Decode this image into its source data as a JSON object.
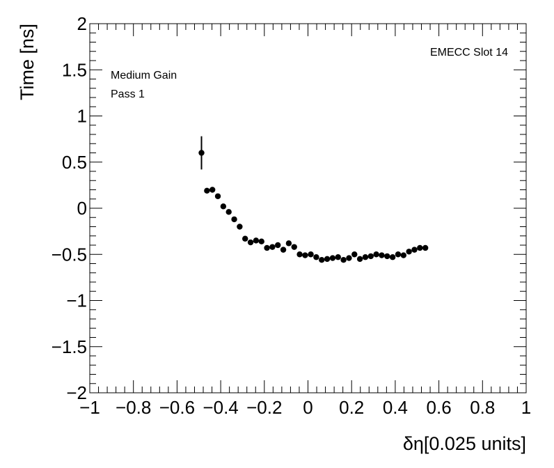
{
  "chart_data": {
    "type": "scatter",
    "xlabel": "δη[0.025 units]",
    "ylabel": "Time [ns]",
    "xlim": [
      -1,
      1
    ],
    "ylim": [
      -2,
      2
    ],
    "xticks": [
      "−1",
      "−0.8",
      "−0.6",
      "−0.4",
      "−0.2",
      "0",
      "0.2",
      "0.4",
      "0.6",
      "0.8",
      "1"
    ],
    "xtick_values": [
      -1,
      -0.8,
      -0.6,
      -0.4,
      -0.2,
      0,
      0.2,
      0.4,
      0.6,
      0.8,
      1
    ],
    "yticks": [
      "−2",
      "−1.5",
      "−1",
      "−0.5",
      "0",
      "0.5",
      "1",
      "1.5",
      "2"
    ],
    "ytick_values": [
      -2,
      -1.5,
      -1,
      -0.5,
      0,
      0.5,
      1,
      1.5,
      2
    ],
    "grid": false,
    "annotations": {
      "top_right": "EMECC Slot 14",
      "top_left_line1": "Medium Gain",
      "top_left_line2": "Pass 1"
    },
    "series": [
      {
        "marker": "circle",
        "color": "#000000",
        "x": [
          -0.488,
          -0.463,
          -0.438,
          -0.413,
          -0.388,
          -0.363,
          -0.338,
          -0.313,
          -0.288,
          -0.263,
          -0.238,
          -0.213,
          -0.188,
          -0.163,
          -0.138,
          -0.113,
          -0.088,
          -0.063,
          -0.038,
          -0.013,
          0.013,
          0.038,
          0.063,
          0.088,
          0.113,
          0.138,
          0.163,
          0.188,
          0.213,
          0.238,
          0.263,
          0.288,
          0.313,
          0.338,
          0.363,
          0.388,
          0.413,
          0.438,
          0.463,
          0.488,
          0.513,
          0.538
        ],
        "y": [
          0.6,
          0.19,
          0.2,
          0.13,
          0.02,
          -0.04,
          -0.12,
          -0.2,
          -0.33,
          -0.37,
          -0.35,
          -0.36,
          -0.43,
          -0.42,
          -0.4,
          -0.45,
          -0.38,
          -0.42,
          -0.5,
          -0.51,
          -0.5,
          -0.53,
          -0.56,
          -0.55,
          -0.54,
          -0.53,
          -0.56,
          -0.54,
          -0.5,
          -0.55,
          -0.53,
          -0.52,
          -0.5,
          -0.51,
          -0.52,
          -0.53,
          -0.5,
          -0.51,
          -0.47,
          -0.45,
          -0.43,
          -0.43
        ],
        "yerr": [
          0.18,
          0.02,
          0.02,
          0.02,
          0.02,
          0.02,
          0.02,
          0.02,
          0.02,
          0.02,
          0.02,
          0.02,
          0.02,
          0.02,
          0.02,
          0.02,
          0.02,
          0.02,
          0.02,
          0.02,
          0.02,
          0.02,
          0.02,
          0.02,
          0.02,
          0.02,
          0.02,
          0.02,
          0.02,
          0.02,
          0.02,
          0.02,
          0.02,
          0.02,
          0.02,
          0.02,
          0.02,
          0.02,
          0.02,
          0.02,
          0.02,
          0.02
        ]
      }
    ]
  }
}
